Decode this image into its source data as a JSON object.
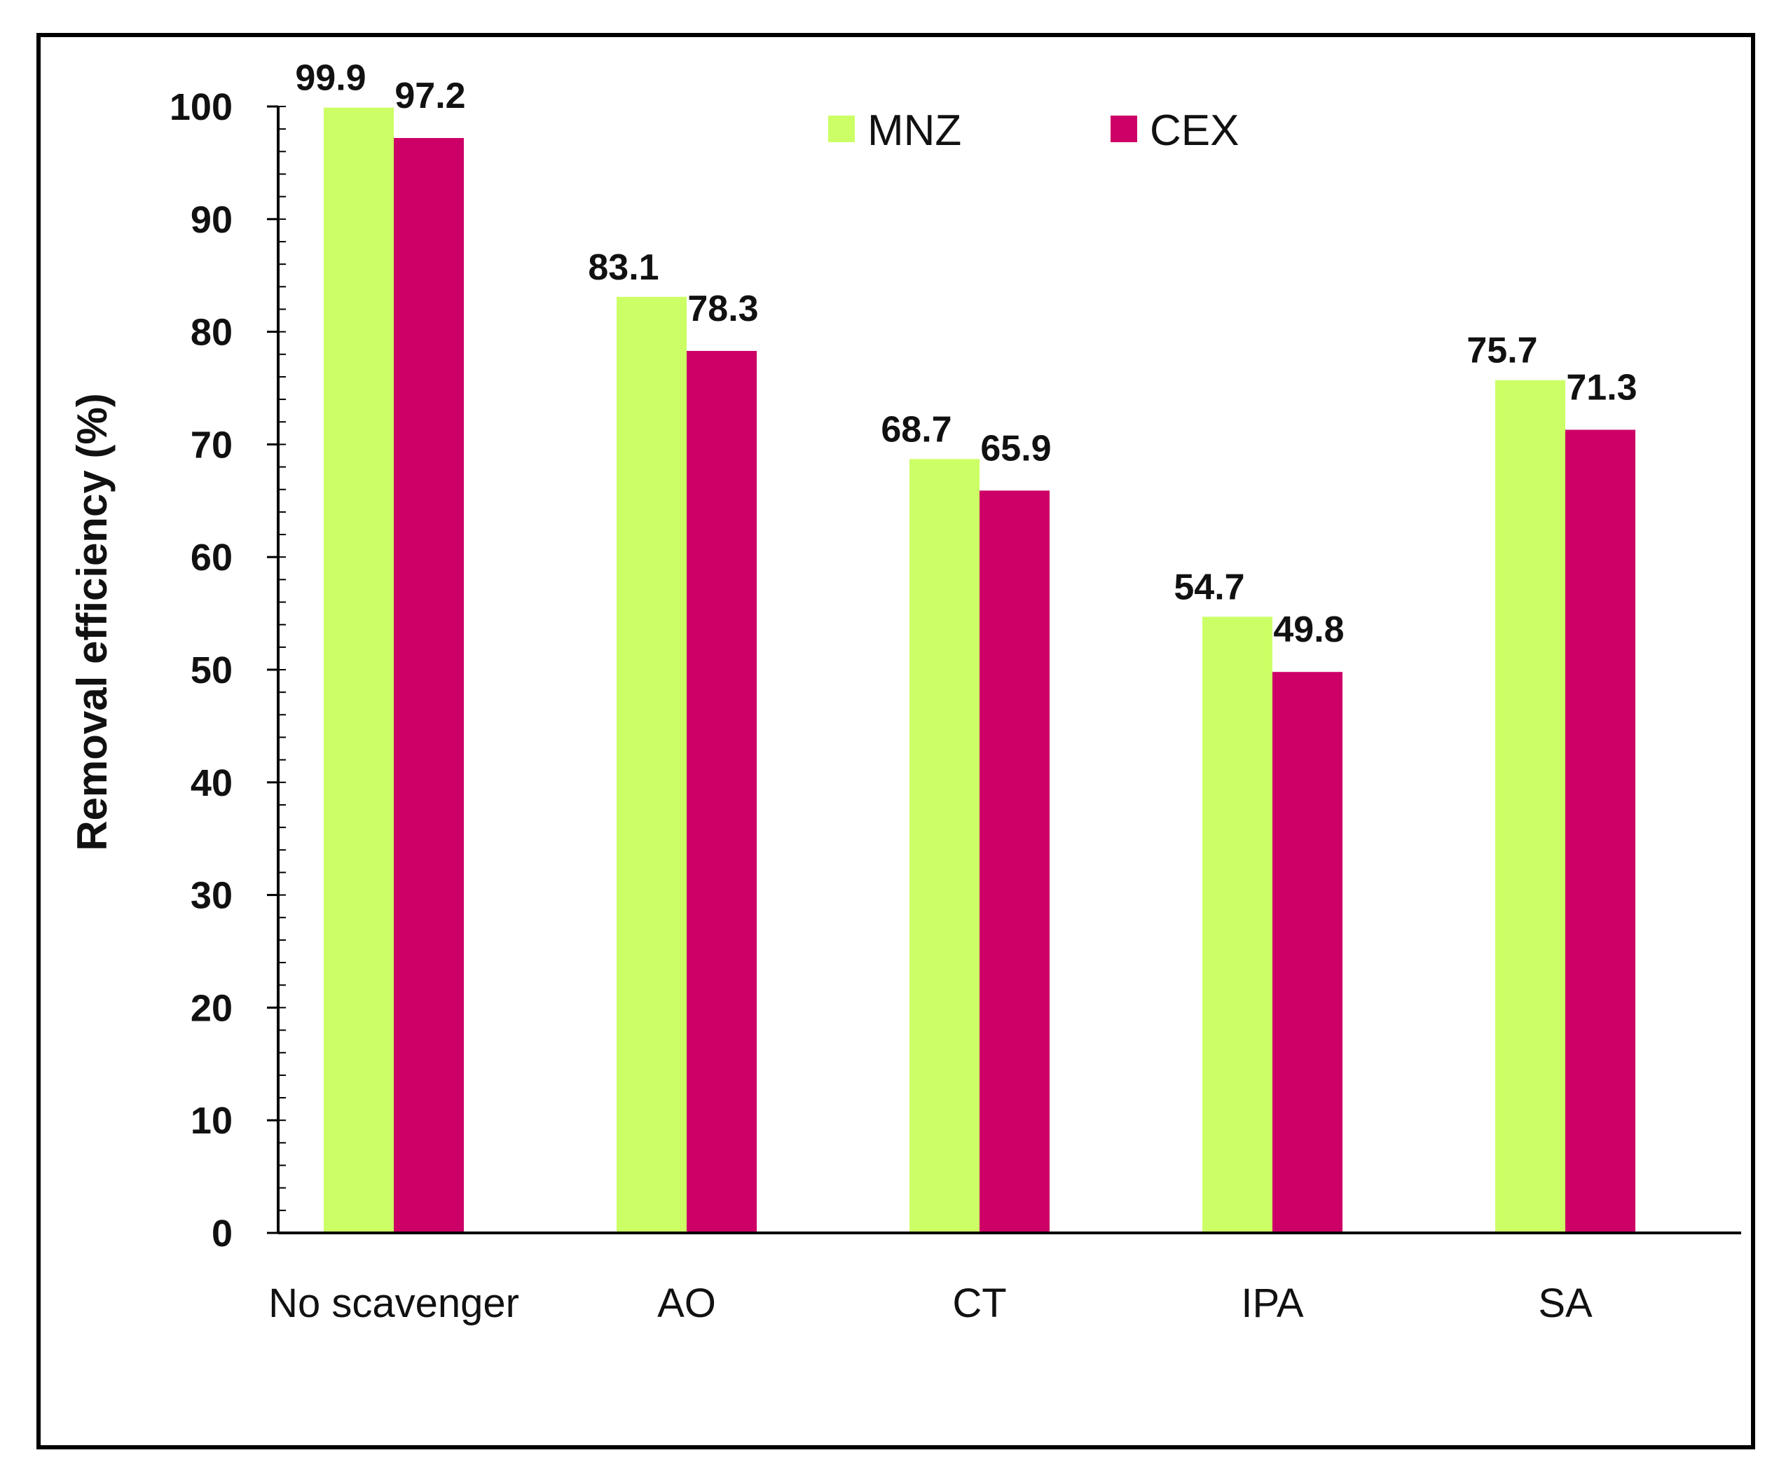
{
  "chart_data": {
    "type": "bar",
    "title": "",
    "xlabel": "",
    "ylabel": "Removal efficiency (%)",
    "ylim": [
      0,
      100
    ],
    "y_major_step": 10,
    "y_minor_step": 2,
    "grid": false,
    "legend_position": "top-center",
    "categories": [
      "No scavenger",
      "AO",
      "CT",
      "IPA",
      "SA"
    ],
    "series": [
      {
        "name": "MNZ",
        "color": "#CCFF66",
        "values": [
          99.9,
          83.1,
          68.7,
          54.7,
          75.7
        ]
      },
      {
        "name": "CEX",
        "color": "#CC0066",
        "values": [
          97.2,
          78.3,
          65.9,
          49.8,
          71.3
        ]
      }
    ],
    "data_labels": [
      [
        "99.9",
        "83.1",
        "68.7",
        "54.7",
        "75.7"
      ],
      [
        "97.2",
        "78.3",
        "65.9",
        "49.8",
        "71.3"
      ]
    ],
    "y_tick_labels": [
      "0",
      "10",
      "20",
      "30",
      "40",
      "50",
      "60",
      "70",
      "80",
      "90",
      "100"
    ]
  }
}
